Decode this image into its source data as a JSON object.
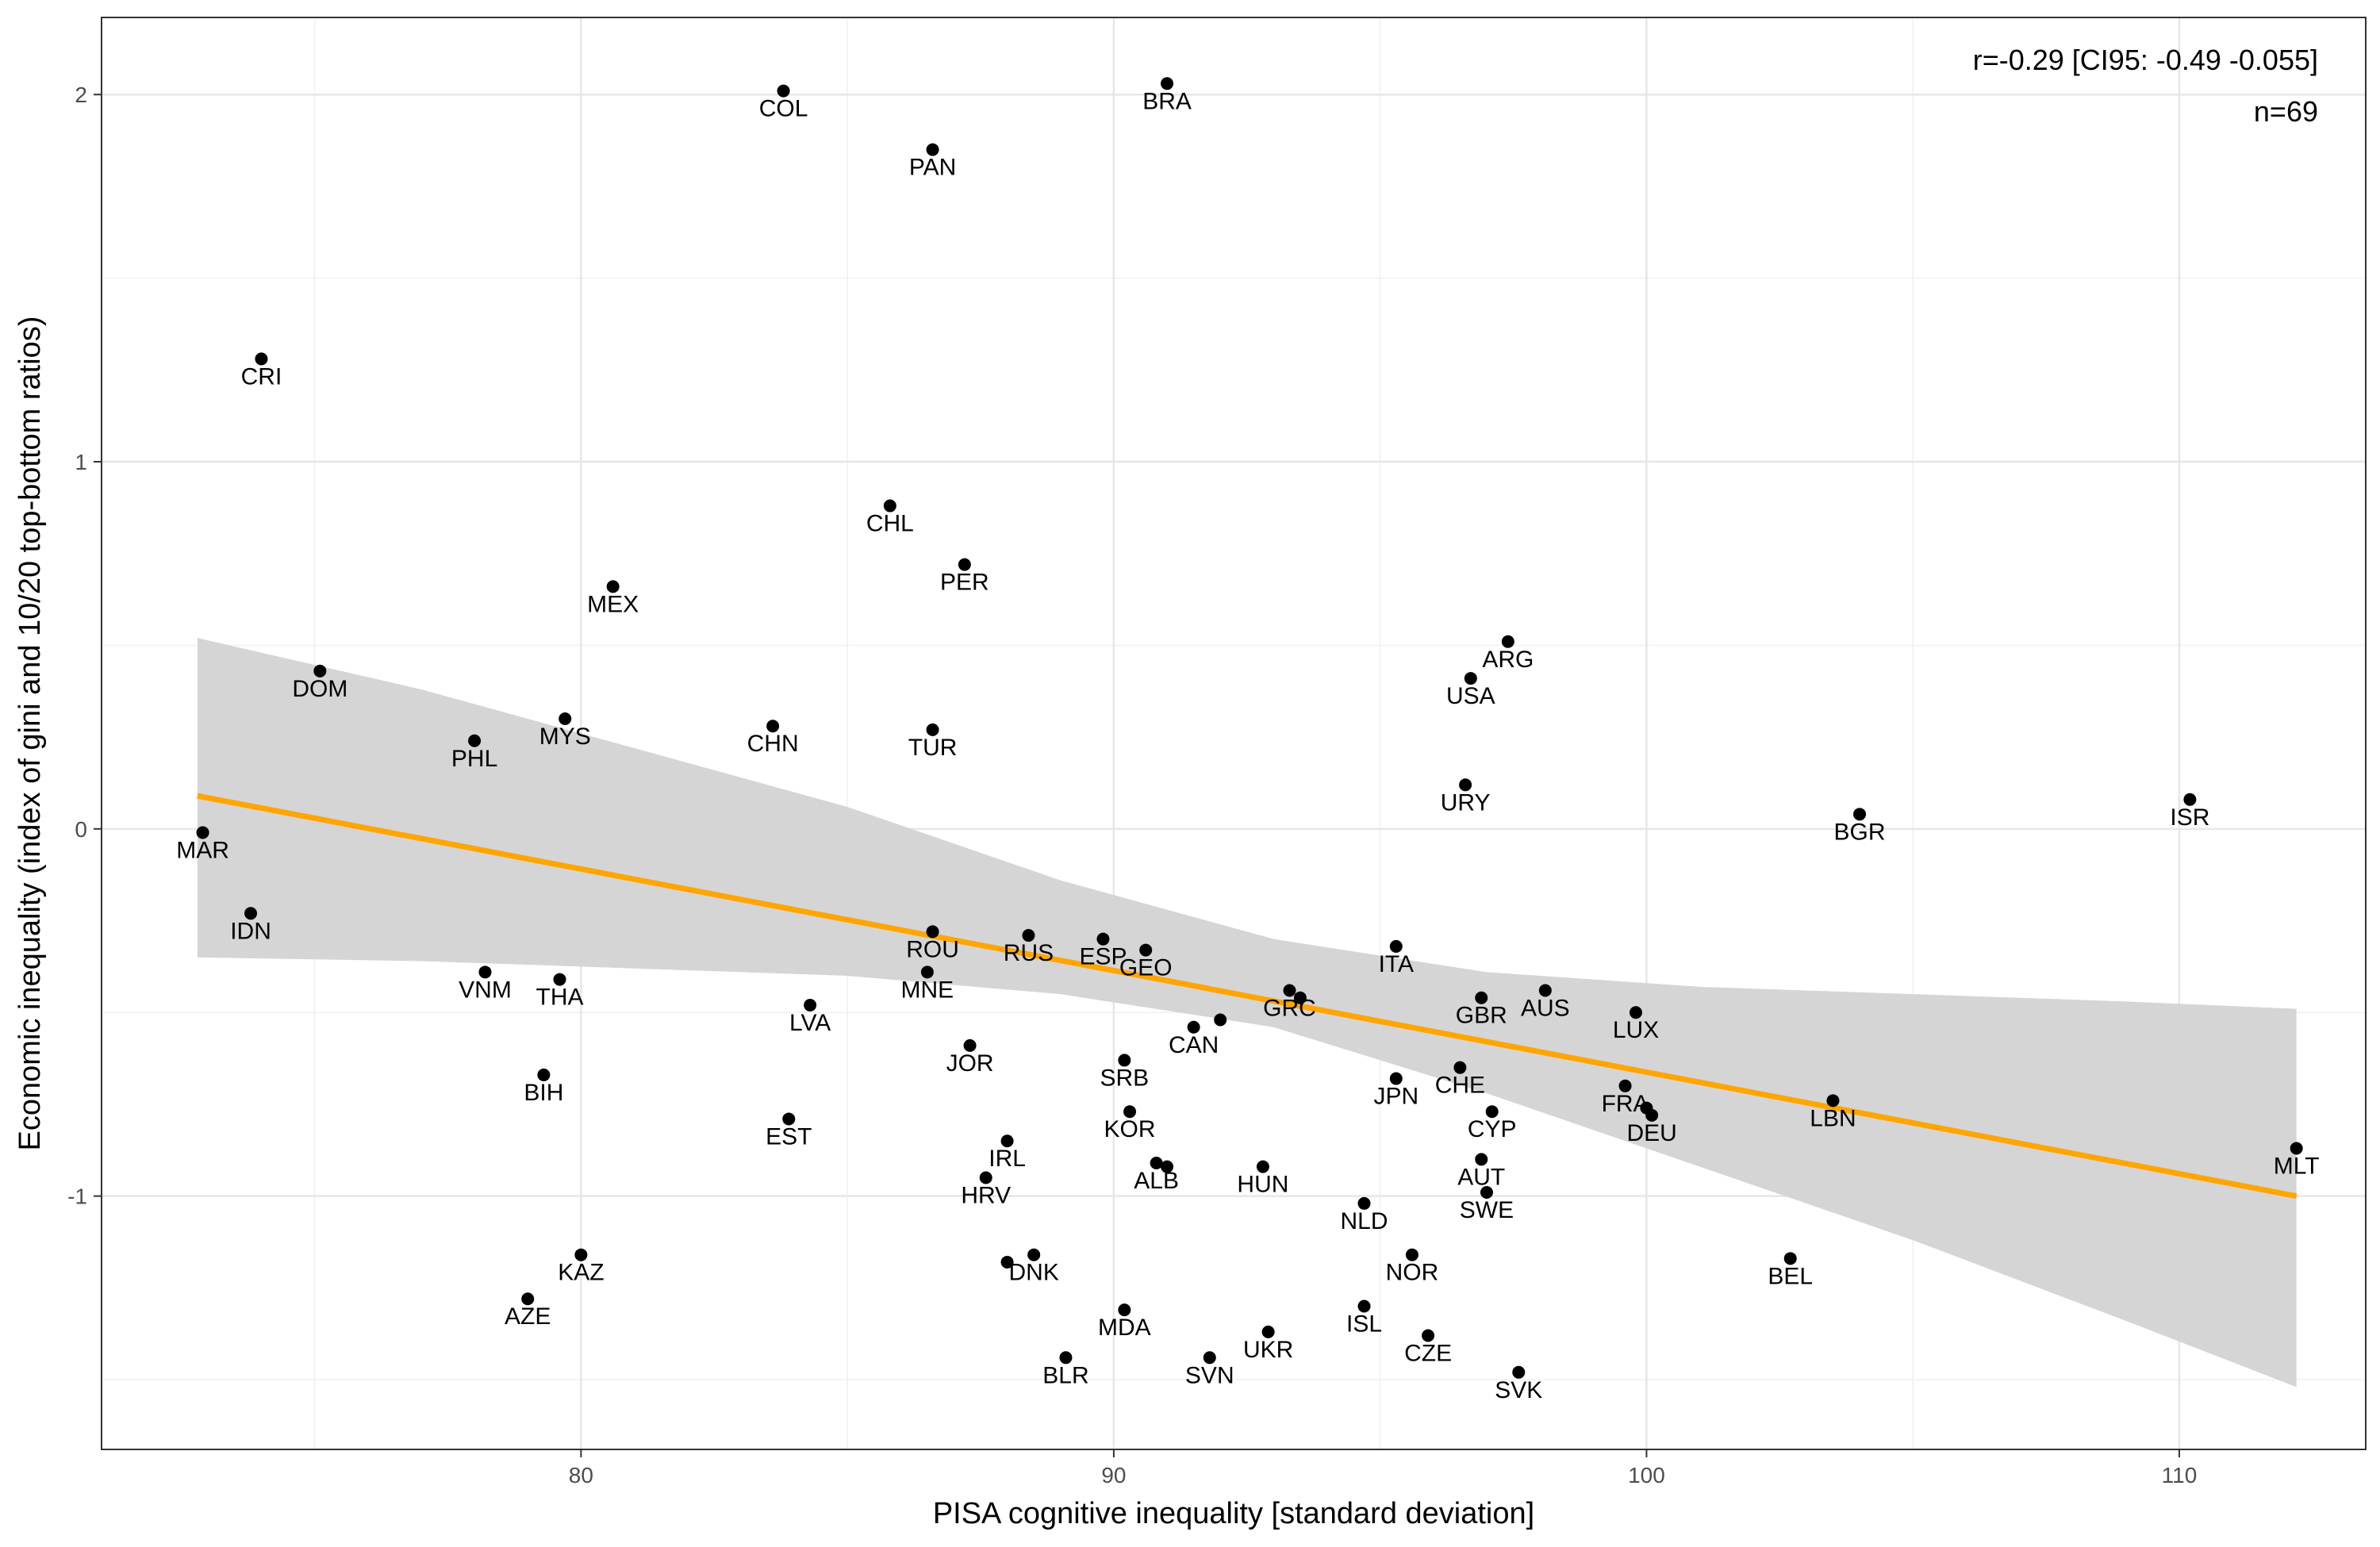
{
  "chart_data": {
    "type": "scatter",
    "xlabel": "PISA cognitive inequality [standard deviation]",
    "ylabel": "Economic inequality (index of gini and 10/20 top-bottom ratios)",
    "xlim": [
      71.0,
      113.5
    ],
    "ylim": [
      -1.69,
      2.21
    ],
    "x_ticks": [
      80,
      90,
      100,
      110
    ],
    "y_ticks": [
      -1,
      0,
      1,
      2
    ],
    "x_ticks_minor": [
      75,
      85,
      95,
      105
    ],
    "y_ticks_minor": [
      -1.5,
      -0.5,
      0.5,
      1.5
    ],
    "grid": true,
    "annotations": [
      "r=-0.29 [CI95: -0.49 -0.055]",
      "n=69"
    ],
    "fit_line": {
      "color": "#FFA500",
      "x": [
        72.8,
        112.2
      ],
      "y": [
        0.09,
        -1.0
      ]
    },
    "confidence_band": {
      "color": "#D3D3D3",
      "x": [
        72.8,
        77,
        81,
        85,
        89,
        93,
        97,
        101,
        105,
        109,
        112.2
      ],
      "lower": [
        -0.35,
        -0.36,
        -0.38,
        -0.4,
        -0.45,
        -0.54,
        -0.72,
        -0.92,
        -1.12,
        -1.34,
        -1.52
      ],
      "upper": [
        0.52,
        0.38,
        0.22,
        0.06,
        -0.14,
        -0.3,
        -0.39,
        -0.43,
        -0.45,
        -0.47,
        -0.49
      ]
    },
    "points": [
      {
        "label": "COL",
        "x": 83.8,
        "y": 2.01
      },
      {
        "label": "BRA",
        "x": 91.0,
        "y": 2.03
      },
      {
        "label": "PAN",
        "x": 86.6,
        "y": 1.85
      },
      {
        "label": "CRI",
        "x": 74.0,
        "y": 1.28
      },
      {
        "label": "CHL",
        "x": 85.8,
        "y": 0.88
      },
      {
        "label": "PER",
        "x": 87.2,
        "y": 0.72
      },
      {
        "label": "MEX",
        "x": 80.6,
        "y": 0.66
      },
      {
        "label": "ARG",
        "x": 97.4,
        "y": 0.51
      },
      {
        "label": "USA",
        "x": 96.7,
        "y": 0.41
      },
      {
        "label": "DOM",
        "x": 75.1,
        "y": 0.43
      },
      {
        "label": "MYS",
        "x": 79.7,
        "y": 0.3
      },
      {
        "label": "CHN",
        "x": 83.6,
        "y": 0.28
      },
      {
        "label": "TUR",
        "x": 86.6,
        "y": 0.27
      },
      {
        "label": "PHL",
        "x": 78.0,
        "y": 0.24
      },
      {
        "label": "URY",
        "x": 96.6,
        "y": 0.12
      },
      {
        "label": "BGR",
        "x": 104.0,
        "y": 0.04
      },
      {
        "label": "ISR",
        "x": 110.2,
        "y": 0.08
      },
      {
        "label": "MAR",
        "x": 72.9,
        "y": -0.01
      },
      {
        "label": "IDN",
        "x": 73.8,
        "y": -0.23
      },
      {
        "label": "ROU",
        "x": 86.6,
        "y": -0.28
      },
      {
        "label": "RUS",
        "x": 88.4,
        "y": -0.29
      },
      {
        "label": "ESP",
        "x": 89.8,
        "y": -0.3
      },
      {
        "label": "GEO",
        "x": 90.6,
        "y": -0.33
      },
      {
        "label": "ITA",
        "x": 95.3,
        "y": -0.32
      },
      {
        "label": "VNM",
        "x": 78.2,
        "y": -0.39
      },
      {
        "label": "MNE",
        "x": 86.5,
        "y": -0.39
      },
      {
        "label": "THA",
        "x": 79.6,
        "y": -0.41
      },
      {
        "label": "GRC",
        "x": 93.3,
        "y": -0.44
      },
      {
        "label": "GBR",
        "x": 96.9,
        "y": -0.46
      },
      {
        "label": "AUS",
        "x": 98.1,
        "y": -0.44
      },
      {
        "label": "LVA",
        "x": 84.3,
        "y": -0.48
      },
      {
        "label": "LUX",
        "x": 99.8,
        "y": -0.5
      },
      {
        "label": "CAN",
        "x": 91.5,
        "y": -0.54
      },
      {
        "label": "JOR",
        "x": 87.3,
        "y": -0.59
      },
      {
        "label": "SRB",
        "x": 90.2,
        "y": -0.63
      },
      {
        "label": "CHE",
        "x": 96.5,
        "y": -0.65
      },
      {
        "label": "BIH",
        "x": 79.3,
        "y": -0.67
      },
      {
        "label": "JPN",
        "x": 95.3,
        "y": -0.68
      },
      {
        "label": "FRA",
        "x": 99.6,
        "y": -0.7
      },
      {
        "label": "LBN",
        "x": 103.5,
        "y": -0.74
      },
      {
        "label": "CYP",
        "x": 97.1,
        "y": -0.77
      },
      {
        "label": "DEU",
        "x": 100.1,
        "y": -0.78
      },
      {
        "label": "KOR",
        "x": 90.3,
        "y": -0.77
      },
      {
        "label": "EST",
        "x": 83.9,
        "y": -0.79
      },
      {
        "label": "IRL",
        "x": 88.0,
        "y": -0.85
      },
      {
        "label": "MLT",
        "x": 112.2,
        "y": -0.87
      },
      {
        "label": "AUT",
        "x": 96.9,
        "y": -0.9
      },
      {
        "label": "ALB",
        "x": 90.8,
        "y": -0.91
      },
      {
        "label": "HUN",
        "x": 92.8,
        "y": -0.92
      },
      {
        "label": "HRV",
        "x": 87.6,
        "y": -0.95
      },
      {
        "label": "SWE",
        "x": 97.0,
        "y": -0.99
      },
      {
        "label": "NLD",
        "x": 94.7,
        "y": -1.02
      },
      {
        "label": "KAZ",
        "x": 80.0,
        "y": -1.16
      },
      {
        "label": "NOR",
        "x": 95.6,
        "y": -1.16
      },
      {
        "label": "BEL",
        "x": 102.7,
        "y": -1.17
      },
      {
        "label": "DNK",
        "x": 88.5,
        "y": -1.16
      },
      {
        "label": "AZE",
        "x": 79.0,
        "y": -1.28
      },
      {
        "label": "ISL",
        "x": 94.7,
        "y": -1.3
      },
      {
        "label": "MDA",
        "x": 90.2,
        "y": -1.31
      },
      {
        "label": "UKR",
        "x": 92.9,
        "y": -1.37
      },
      {
        "label": "CZE",
        "x": 95.9,
        "y": -1.38
      },
      {
        "label": "BLR",
        "x": 89.1,
        "y": -1.44
      },
      {
        "label": "SVN",
        "x": 91.8,
        "y": -1.44
      },
      {
        "label": "SVK",
        "x": 97.6,
        "y": -1.48
      },
      {
        "label": "",
        "x": 88.0,
        "y": -1.18
      },
      {
        "label": "",
        "x": 91.0,
        "y": -0.92
      },
      {
        "label": "",
        "x": 92.0,
        "y": -0.52
      },
      {
        "label": "",
        "x": 93.5,
        "y": -0.46
      },
      {
        "label": "",
        "x": 100.0,
        "y": -0.76
      }
    ]
  }
}
